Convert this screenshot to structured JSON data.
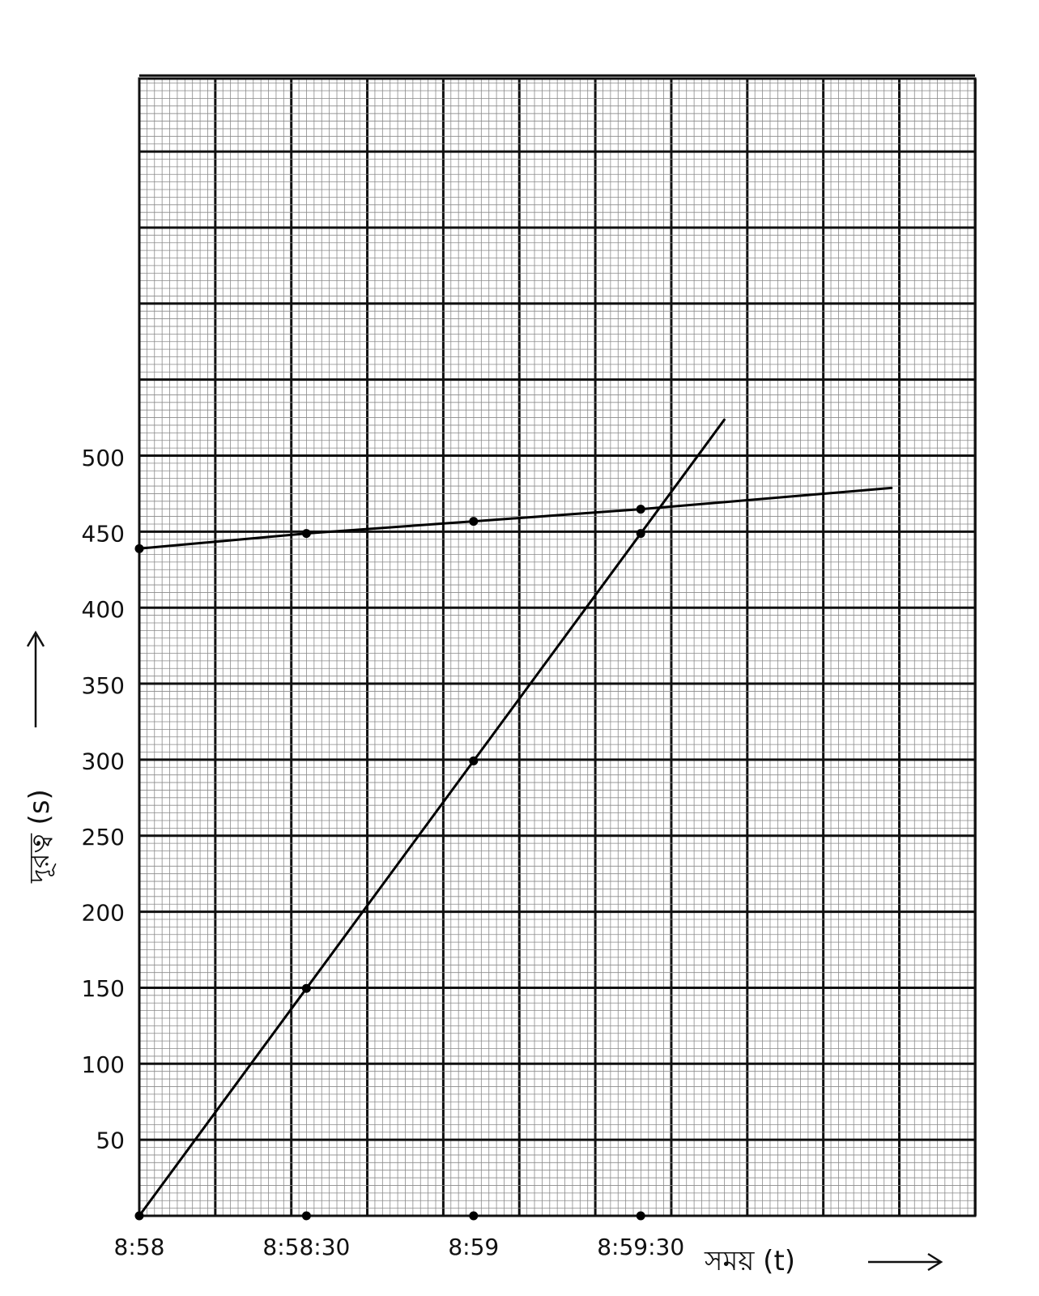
{
  "chart_data": {
    "type": "line",
    "title": "",
    "xlabel": "সময় (t)",
    "ylabel": "দূরত্ব (s)",
    "x_ticks": [
      "8:58",
      "8:58:30",
      "8:59",
      "8:59:30"
    ],
    "y_ticks": [
      "50",
      "100",
      "150",
      "200",
      "250",
      "300",
      "350",
      "400",
      "450",
      "500"
    ],
    "xlim": [
      "8:58",
      "9:00:30"
    ],
    "ylim": [
      0,
      750
    ],
    "grid": true,
    "series": [
      {
        "points": [
          {
            "x": "8:58",
            "y": 0
          },
          {
            "x": "8:58:30",
            "y": 150
          },
          {
            "x": "8:59",
            "y": 300
          },
          {
            "x": "8:59:30",
            "y": 450
          },
          {
            "x": "8:59:45",
            "y": 525
          }
        ]
      },
      {
        "points": [
          {
            "x": "8:58",
            "y": 440
          },
          {
            "x": "8:58:30",
            "y": 450
          },
          {
            "x": "8:59",
            "y": 458
          },
          {
            "x": "8:59:30",
            "y": 466
          },
          {
            "x": "9:00:15",
            "y": 480
          }
        ]
      }
    ],
    "markers": [
      {
        "x": "8:58",
        "y": 0
      },
      {
        "x": "8:58:30",
        "y": 150
      },
      {
        "x": "8:59",
        "y": 300
      },
      {
        "x": "8:59:30",
        "y": 450
      },
      {
        "x": "8:58",
        "y": 440
      },
      {
        "x": "8:58:30",
        "y": 450
      },
      {
        "x": "8:59",
        "y": 458
      },
      {
        "x": "8:59:30",
        "y": 466
      },
      {
        "x": "8:58:30",
        "y": 0
      },
      {
        "x": "8:59",
        "y": 0
      },
      {
        "x": "8:59:30",
        "y": 0
      }
    ]
  }
}
